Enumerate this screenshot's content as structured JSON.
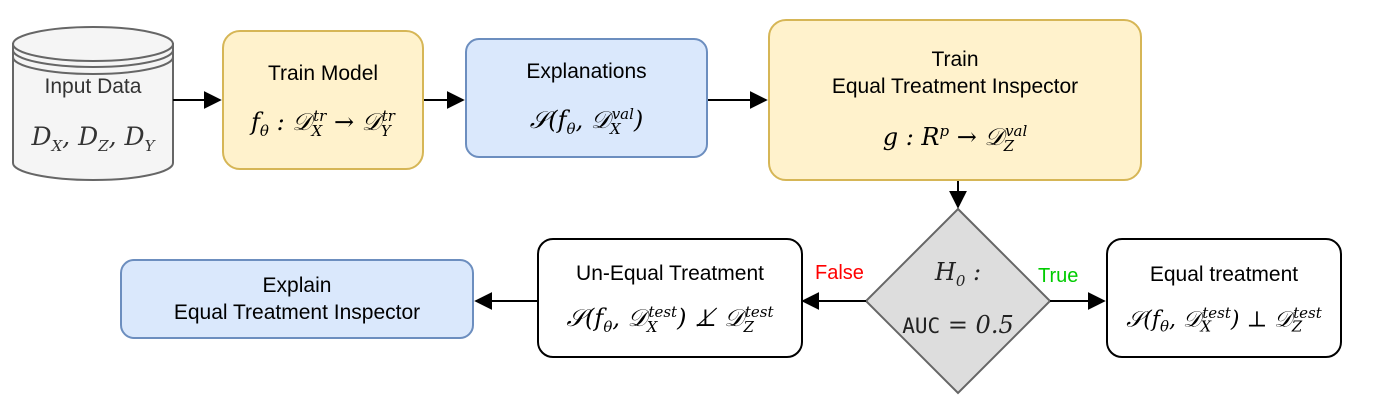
{
  "colors": {
    "yellow_fill": "#fff2cc",
    "yellow_stroke": "#d6b656",
    "blue_fill": "#dae8fc",
    "blue_stroke": "#6c8ebf",
    "false_label": "#ff0000",
    "true_label": "#00cc00"
  },
  "input": {
    "title": "Input Data",
    "math": "D_X, D_Z, D_Y"
  },
  "train_model": {
    "title": "Train Model",
    "math": "f_θ : 𝒟_X^tr → 𝒟_Y^tr"
  },
  "explanations": {
    "title": "Explanations",
    "math": "𝒮(f_θ, 𝒟_X^val)"
  },
  "inspector": {
    "title_line1": "Train",
    "title_line2": "Equal Treatment Inspector",
    "math": "g : R^p → 𝒟_Z^val"
  },
  "decision": {
    "math_line1": "H_0 :",
    "math_line2": "AUC = 0.5"
  },
  "false_label": "False",
  "true_label": "True",
  "unequal": {
    "title": "Un-Equal Treatment",
    "math": "𝒮(f_θ, 𝒟_X^test) ⊥̸ 𝒟_Z^test"
  },
  "equal": {
    "title": "Equal treatment",
    "math": "𝒮(f_θ, 𝒟_X^test) ⊥ 𝒟_Z^test"
  },
  "explain": {
    "line1": "Explain",
    "line2": "Equal Treatment Inspector"
  }
}
